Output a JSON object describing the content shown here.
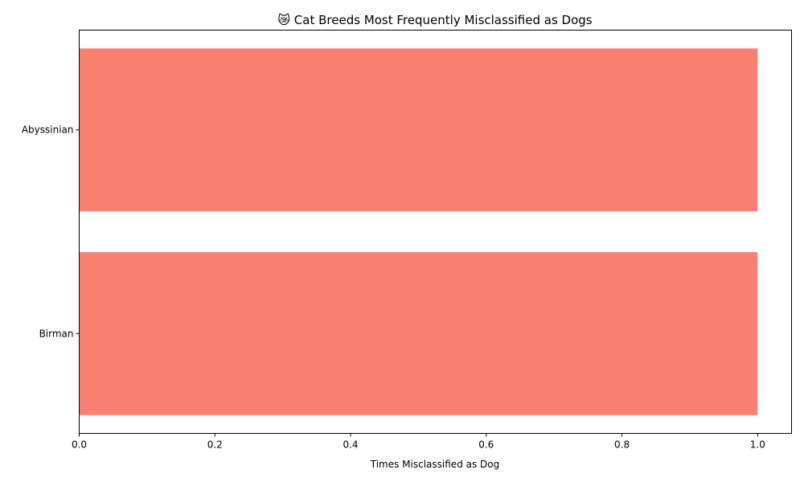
{
  "chart_data": {
    "type": "bar",
    "orientation": "horizontal",
    "title": "😿 Cat Breeds Most Frequently Misclassified as Dogs",
    "xlabel": "Times Misclassified as Dog",
    "ylabel": "",
    "categories": [
      "Abyssinian",
      "Birman"
    ],
    "values": [
      1,
      1
    ],
    "xlim": [
      0,
      1.05
    ],
    "xticks": [
      "0.0",
      "0.2",
      "0.4",
      "0.6",
      "0.8",
      "1.0"
    ],
    "xtick_values": [
      0,
      0.2,
      0.4,
      0.6,
      0.8,
      1.0
    ],
    "bar_color": "#fa8072",
    "grid": false,
    "legend": "none"
  }
}
